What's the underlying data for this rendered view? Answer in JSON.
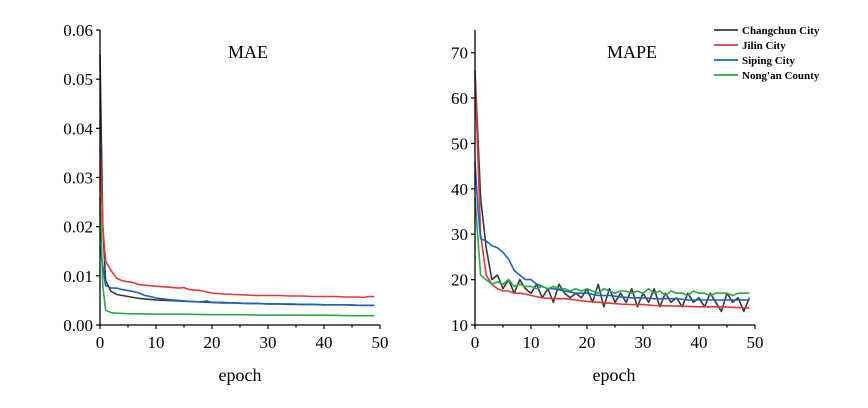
{
  "colors": {
    "changchun": "#3a3a3a",
    "jilin": "#e0393b",
    "siping": "#1f5fc8",
    "nongan": "#2aa84a"
  },
  "chart_data": [
    {
      "type": "line",
      "title": "MAE",
      "xlabel": "epoch",
      "ylabel": "",
      "xlim": [
        0,
        50
      ],
      "ylim": [
        0,
        0.06
      ],
      "xticks": [
        0,
        10,
        20,
        30,
        40,
        50
      ],
      "xtick_labels": [
        "0",
        "10",
        "20",
        "30",
        "40",
        "50"
      ],
      "yticks": [
        0,
        0.01,
        0.02,
        0.03,
        0.04,
        0.05,
        0.06
      ],
      "ytick_labels": [
        "0.00",
        "0.01",
        "0.02",
        "0.03",
        "0.04",
        "0.05",
        "0.06"
      ],
      "grid": false,
      "legend": "none",
      "series": [
        {
          "key": "changchun",
          "x": [
            0,
            0.5,
            1,
            2,
            3,
            4,
            5,
            6,
            7,
            8,
            9,
            10,
            12,
            14,
            16,
            18,
            20,
            22,
            24,
            26,
            28,
            30,
            32,
            34,
            36,
            38,
            40,
            42,
            44,
            46,
            48,
            49
          ],
          "values": [
            0.055,
            0.02,
            0.009,
            0.0068,
            0.0062,
            0.006,
            0.0058,
            0.0056,
            0.0054,
            0.0053,
            0.0052,
            0.0051,
            0.005,
            0.0049,
            0.0048,
            0.0047,
            0.0046,
            0.0045,
            0.0045,
            0.0044,
            0.0044,
            0.0043,
            0.0043,
            0.0042,
            0.0042,
            0.0042,
            0.0041,
            0.0041,
            0.0041,
            0.004,
            0.004,
            0.004
          ]
        },
        {
          "key": "jilin",
          "x": [
            0,
            0.5,
            1,
            2,
            3,
            4,
            5,
            6,
            7,
            8,
            9,
            10,
            12,
            14,
            15,
            16,
            18,
            20,
            22,
            24,
            26,
            28,
            30,
            32,
            34,
            36,
            38,
            40,
            42,
            44,
            46,
            47,
            48,
            49
          ],
          "values": [
            0.036,
            0.02,
            0.013,
            0.011,
            0.0095,
            0.009,
            0.0088,
            0.0086,
            0.0082,
            0.0081,
            0.008,
            0.0079,
            0.0077,
            0.0075,
            0.0076,
            0.0072,
            0.007,
            0.0065,
            0.0063,
            0.0062,
            0.0061,
            0.006,
            0.006,
            0.006,
            0.0059,
            0.0059,
            0.0058,
            0.0058,
            0.0058,
            0.0057,
            0.0057,
            0.0056,
            0.0058,
            0.0058
          ]
        },
        {
          "key": "siping",
          "x": [
            0,
            0.5,
            1,
            2,
            3,
            4,
            5,
            6,
            7,
            8,
            9,
            10,
            12,
            14,
            16,
            18,
            19,
            20,
            22,
            24,
            26,
            28,
            30,
            32,
            34,
            36,
            38,
            40,
            42,
            44,
            46,
            48,
            49
          ],
          "values": [
            0.016,
            0.012,
            0.008,
            0.0075,
            0.0075,
            0.0072,
            0.007,
            0.0068,
            0.0065,
            0.006,
            0.0058,
            0.0055,
            0.0052,
            0.005,
            0.0048,
            0.0047,
            0.0049,
            0.0046,
            0.0046,
            0.0045,
            0.0044,
            0.0044,
            0.0043,
            0.0043,
            0.0043,
            0.0042,
            0.0042,
            0.0041,
            0.0041,
            0.0041,
            0.004,
            0.004,
            0.004
          ]
        },
        {
          "key": "nongan",
          "x": [
            0,
            0.5,
            1,
            2,
            3,
            5,
            10,
            15,
            20,
            25,
            30,
            35,
            40,
            45,
            49
          ],
          "values": [
            0.026,
            0.008,
            0.003,
            0.0025,
            0.0024,
            0.0023,
            0.0022,
            0.0022,
            0.0021,
            0.0021,
            0.002,
            0.002,
            0.002,
            0.0019,
            0.0019
          ]
        }
      ]
    },
    {
      "type": "line",
      "title": "MAPE",
      "xlabel": "epoch",
      "ylabel": "",
      "xlim": [
        0,
        50
      ],
      "ylim": [
        10,
        75
      ],
      "xticks": [
        0,
        10,
        20,
        30,
        40,
        50
      ],
      "xtick_labels": [
        "0",
        "10",
        "20",
        "30",
        "40",
        "50"
      ],
      "yticks": [
        10,
        20,
        30,
        40,
        50,
        60,
        70
      ],
      "ytick_labels": [
        "10",
        "20",
        "30",
        "40",
        "50",
        "60",
        "70"
      ],
      "grid": false,
      "legend": "top-right",
      "series": [
        {
          "key": "changchun",
          "name": "Changchun City",
          "x": [
            0,
            1,
            2,
            3,
            4,
            5,
            6,
            7,
            8,
            9,
            10,
            11,
            12,
            13,
            14,
            15,
            16,
            17,
            18,
            19,
            20,
            21,
            22,
            23,
            24,
            25,
            26,
            27,
            28,
            29,
            30,
            31,
            32,
            33,
            34,
            35,
            36,
            37,
            38,
            39,
            40,
            41,
            42,
            43,
            44,
            45,
            46,
            47,
            48,
            49
          ],
          "values": [
            66,
            38,
            27,
            20,
            21,
            18,
            20,
            17,
            20,
            18,
            17,
            19,
            16,
            18,
            15,
            19,
            17,
            16,
            17,
            16,
            18,
            15,
            19,
            14,
            18,
            15,
            17,
            15,
            18,
            14,
            17,
            15,
            18,
            14,
            17,
            15,
            16,
            14,
            17,
            15,
            16,
            14,
            17,
            15,
            13,
            17,
            15,
            16,
            13,
            16
          ]
        },
        {
          "key": "jilin",
          "name": "Jilin City",
          "x": [
            0,
            1,
            2,
            3,
            4,
            5,
            6,
            7,
            8,
            9,
            10,
            12,
            14,
            16,
            18,
            20,
            22,
            24,
            26,
            28,
            30,
            32,
            34,
            36,
            38,
            40,
            42,
            44,
            46,
            48,
            49
          ],
          "values": [
            65,
            30,
            21,
            19,
            18,
            17.5,
            17.5,
            17,
            17,
            16.8,
            16.5,
            16,
            15.8,
            15.8,
            15.5,
            15.2,
            15,
            14.8,
            14.6,
            14.5,
            14.5,
            14.3,
            14.2,
            14.2,
            14.1,
            14,
            14,
            14,
            13.9,
            13.8,
            13.8
          ]
        },
        {
          "key": "siping",
          "name": "Siping City",
          "x": [
            0,
            0.5,
            1,
            2,
            3,
            4,
            5,
            6,
            7,
            8,
            9,
            10,
            11,
            12,
            13,
            14,
            16,
            18,
            20,
            22,
            24,
            26,
            28,
            30,
            32,
            34,
            36,
            38,
            40,
            42,
            44,
            46,
            48,
            49
          ],
          "values": [
            46,
            36,
            29,
            28.5,
            27.5,
            27,
            26,
            24.5,
            22,
            21,
            20,
            20,
            19,
            18.5,
            18,
            18,
            17.5,
            17,
            17,
            16.5,
            16.5,
            16.2,
            16,
            16,
            15.8,
            15.8,
            15.8,
            15.5,
            15.5,
            15.5,
            15.5,
            15.5,
            15.5,
            15.5
          ]
        },
        {
          "key": "nongan",
          "name": "Nong'an County",
          "x": [
            0,
            1,
            2,
            3,
            4,
            5,
            6,
            7,
            8,
            9,
            10,
            11,
            12,
            13,
            14,
            15,
            16,
            17,
            18,
            19,
            20,
            21,
            22,
            23,
            24,
            25,
            26,
            27,
            28,
            29,
            30,
            31,
            32,
            33,
            34,
            35,
            36,
            37,
            38,
            39,
            40,
            41,
            42,
            43,
            44,
            45,
            46,
            47,
            48,
            49
          ],
          "values": [
            38,
            21,
            20,
            19,
            19.5,
            19,
            20,
            18.5,
            19,
            18.5,
            18.5,
            18,
            18.5,
            18,
            18.5,
            18,
            18,
            17.5,
            18,
            17.5,
            18,
            17.5,
            17,
            18,
            17.5,
            17,
            17.5,
            17.5,
            17,
            17.5,
            17,
            18,
            17,
            17.5,
            16.5,
            17.5,
            17,
            17,
            16.5,
            17.5,
            17,
            17,
            16.5,
            17,
            17,
            17,
            16.5,
            17,
            17,
            17
          ]
        }
      ]
    }
  ]
}
